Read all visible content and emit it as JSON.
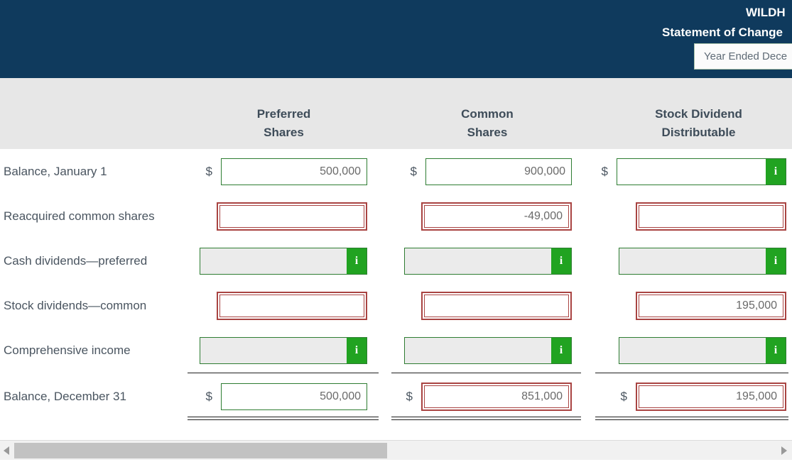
{
  "header": {
    "company_name": "WILDH",
    "statement_title": "Statement of Change",
    "period_input_value": "Year Ended Dece"
  },
  "currency_symbol": "$",
  "info_button_label": "i",
  "columns": [
    {
      "line1": "Preferred",
      "line2": "Shares"
    },
    {
      "line1": "Common",
      "line2": "Shares"
    },
    {
      "line1": "Stock Dividend",
      "line2": "Distributable"
    }
  ],
  "rows": [
    {
      "label": "Balance, January 1",
      "cells": [
        {
          "value": "500,000"
        },
        {
          "value": "900,000"
        },
        {
          "value": ""
        }
      ]
    },
    {
      "label": "Reacquired common shares",
      "cells": [
        {
          "value": ""
        },
        {
          "value": "-49,000"
        },
        {
          "value": ""
        }
      ]
    },
    {
      "label": "Cash dividends—preferred",
      "cells": [
        {
          "value": ""
        },
        {
          "value": ""
        },
        {
          "value": ""
        }
      ]
    },
    {
      "label": "Stock dividends—common",
      "cells": [
        {
          "value": ""
        },
        {
          "value": ""
        },
        {
          "value": "195,000"
        }
      ]
    },
    {
      "label": "Comprehensive income",
      "cells": [
        {
          "value": ""
        },
        {
          "value": ""
        },
        {
          "value": ""
        }
      ]
    },
    {
      "label": "Balance, December 31",
      "cells": [
        {
          "value": "500,000"
        },
        {
          "value": "851,000"
        },
        {
          "value": "195,000"
        }
      ]
    }
  ],
  "colors": {
    "header_navy": "#0f3a5d",
    "band_gray": "#e7e7e7",
    "valid_green_border": "#2e7d32",
    "info_button_green": "#21a321",
    "error_red": "#a94442",
    "disabled_gray": "#ebebeb"
  }
}
